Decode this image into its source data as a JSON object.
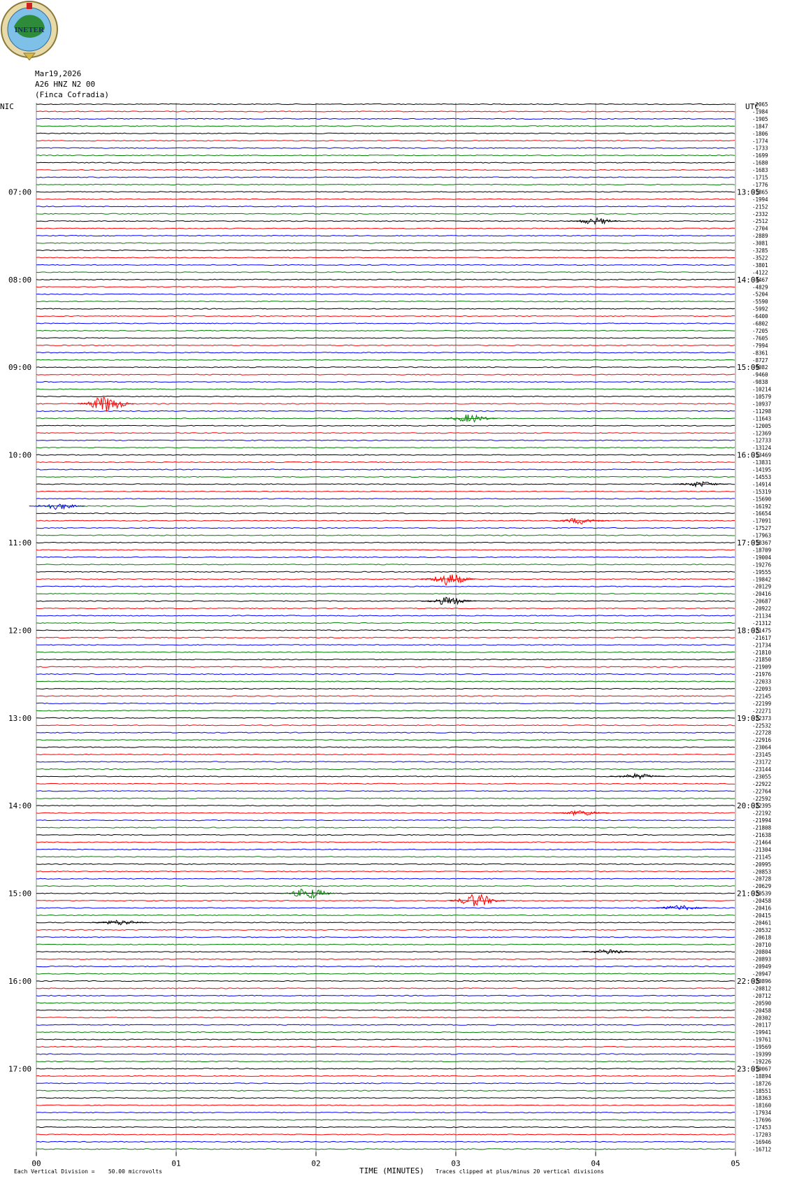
{
  "header": {
    "logo_text": "INETER",
    "date": "Mar19,2026",
    "station": "A26 HNZ N2 00",
    "site": "(Finca Cofradia)",
    "left_timezone": "NIC",
    "right_timezone": "UTC"
  },
  "chart_data": {
    "type": "line",
    "title": "",
    "xlabel": "TIME (MINUTES)",
    "x_ticks": [
      "00",
      "01",
      "02",
      "03",
      "04",
      "05"
    ],
    "xlim": [
      0,
      5
    ],
    "trace_colors": [
      "#000000",
      "#ff0000",
      "#0000ff",
      "#008000"
    ],
    "trace_count": 144,
    "left_hour_labels": [
      "07:00",
      "08:00",
      "09:00",
      "10:00",
      "11:00",
      "12:00",
      "13:00",
      "14:00",
      "15:00",
      "16:00",
      "17:00"
    ],
    "right_hour_labels": [
      "13:05",
      "14:05",
      "15:05",
      "16:05",
      "17:05",
      "18:05",
      "19:05",
      "20:05",
      "21:05",
      "22:05",
      "23:05"
    ],
    "right_trace_values": [
      "-2065",
      "-1984",
      "-1905",
      "-1847",
      "-1806",
      "-1774",
      "-1733",
      "-1699",
      "-1680",
      "-1683",
      "-1715",
      "-1776",
      "-1865",
      "-1994",
      "-2152",
      "-2332",
      "-2512",
      "-2704",
      "-2889",
      "-3081",
      "-3285",
      "-3522",
      "-3801",
      "-4122",
      "-4467",
      "-4829",
      "-5204",
      "-5590",
      "-5992",
      "-6400",
      "-6802",
      "-7205",
      "-7605",
      "-7994",
      "-8361",
      "-8727",
      "-9082",
      "-9460",
      "-9838",
      "-10214",
      "-10579",
      "-10937",
      "-11298",
      "-11643",
      "-12005",
      "-12369",
      "-12733",
      "-13124",
      "-13469",
      "-13831",
      "-14195",
      "-14553",
      "-14914",
      "-15319",
      "-15690",
      "-16192",
      "-16654",
      "-17091",
      "-17527",
      "-17963",
      "-18367",
      "-18709",
      "-19004",
      "-19276",
      "-19555",
      "-19842",
      "-20129",
      "-20416",
      "-20687",
      "-20922",
      "-21134",
      "-21312",
      "-21475",
      "-21617",
      "-21734",
      "-21810",
      "-21850",
      "-21909",
      "-21976",
      "-22033",
      "-22093",
      "-22145",
      "-22199",
      "-22271",
      "-22373",
      "-22532",
      "-22728",
      "-22916",
      "-23064",
      "-23145",
      "-23172",
      "-23144",
      "-23055",
      "-22922",
      "-22764",
      "-22592",
      "-22395",
      "-22192",
      "-21994",
      "-21808",
      "-21638",
      "-21464",
      "-21304",
      "-21145",
      "-20995",
      "-20853",
      "-20728",
      "-20629",
      "-20539",
      "-20458",
      "-20416",
      "-20415",
      "-20461",
      "-20532",
      "-20618",
      "-20710",
      "-20804",
      "-20893",
      "-20949",
      "-20947",
      "-20896",
      "-20812",
      "-20712",
      "-20590",
      "-20458",
      "-20302",
      "-20117",
      "-19941",
      "-19761",
      "-19569",
      "-19399",
      "-19226",
      "-19067",
      "-18894",
      "-18726",
      "-18551",
      "-18363",
      "-18160",
      "-17934",
      "-17696",
      "-17453",
      "-17203",
      "-16946",
      "-16712"
    ],
    "events": [
      {
        "trace": 41,
        "x": 0.5,
        "color": "#ff0000",
        "amp": 12
      },
      {
        "trace": 43,
        "x": 3.1,
        "color": "#008000",
        "amp": 6
      },
      {
        "trace": 16,
        "x": 4.0,
        "color": "#000000",
        "amp": 5
      },
      {
        "trace": 52,
        "x": 4.75,
        "color": "#000000",
        "amp": 4
      },
      {
        "trace": 55,
        "x": 0.15,
        "color": "#0000ff",
        "amp": 5
      },
      {
        "trace": 57,
        "x": 3.9,
        "color": "#ff0000",
        "amp": 5
      },
      {
        "trace": 65,
        "x": 2.95,
        "color": "#ff0000",
        "amp": 9
      },
      {
        "trace": 68,
        "x": 2.95,
        "color": "#000000",
        "amp": 6
      },
      {
        "trace": 92,
        "x": 4.3,
        "color": "#000000",
        "amp": 4
      },
      {
        "trace": 97,
        "x": 3.9,
        "color": "#ff0000",
        "amp": 4
      },
      {
        "trace": 109,
        "x": 3.15,
        "color": "#ff0000",
        "amp": 10
      },
      {
        "trace": 108,
        "x": 1.95,
        "color": "#008000",
        "amp": 8
      },
      {
        "trace": 110,
        "x": 4.6,
        "color": "#0000ff",
        "amp": 4
      },
      {
        "trace": 112,
        "x": 0.6,
        "color": "#000000",
        "amp": 4
      },
      {
        "trace": 116,
        "x": 4.1,
        "color": "#000000",
        "amp": 4
      }
    ]
  },
  "footer": {
    "scale_note": "Each Vertical Division =    50.00 microvolts",
    "clip_note": "Traces clipped at plus/minus 20 vertical divisions"
  }
}
